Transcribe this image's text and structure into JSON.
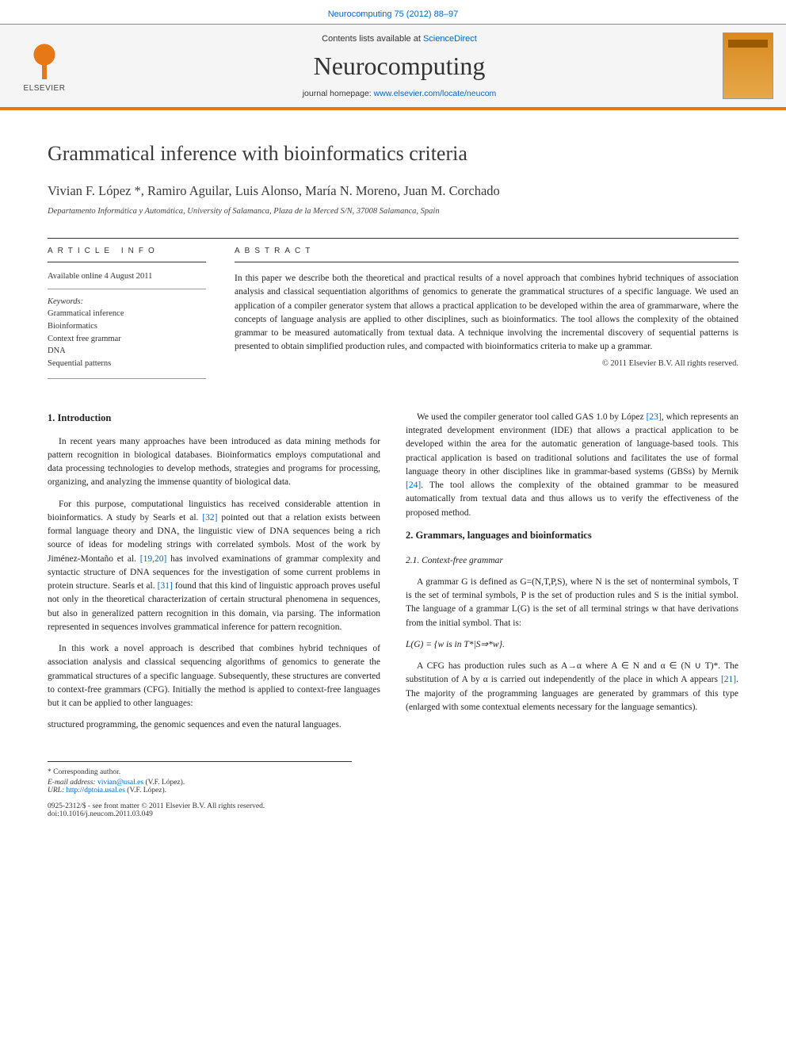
{
  "header": {
    "citation": "Neurocomputing 75 (2012) 88–97",
    "contents_prefix": "Contents lists available at ",
    "contents_link": "ScienceDirect",
    "journal_name": "Neurocomputing",
    "homepage_prefix": "journal homepage: ",
    "homepage_url": "www.elsevier.com/locate/neucom",
    "publisher_name": "ELSEVIER"
  },
  "article": {
    "title": "Grammatical inference with bioinformatics criteria",
    "authors": "Vivian F. López *, Ramiro Aguilar, Luis Alonso, María N. Moreno, Juan M. Corchado",
    "affiliation": "Departamento Informática y Automática, University of Salamanca, Plaza de la Merced S/N, 37008 Salamanca, Spain"
  },
  "info": {
    "section_label": "ARTICLE INFO",
    "available": "Available online 4 August 2011",
    "keywords_label": "Keywords:",
    "keywords": [
      "Grammatical inference",
      "Bioinformatics",
      "Context free grammar",
      "DNA",
      "Sequential patterns"
    ]
  },
  "abstract": {
    "section_label": "ABSTRACT",
    "text": "In this paper we describe both the theoretical and practical results of a novel approach that combines hybrid techniques of association analysis and classical sequentiation algorithms of genomics to generate the grammatical structures of a specific language. We used an application of a compiler generator system that allows a practical application to be developed within the area of grammarware, where the concepts of language analysis are applied to other disciplines, such as bioinformatics. The tool allows the complexity of the obtained grammar to be measured automatically from textual data. A technique involving the incremental discovery of sequential patterns is presented to obtain simplified production rules, and compacted with bioinformatics criteria to make up a grammar.",
    "copyright": "© 2011 Elsevier B.V. All rights reserved."
  },
  "sections": {
    "s1_title": "1. Introduction",
    "s1_p1": "In recent years many approaches have been introduced as data mining methods for pattern recognition in biological databases. Bioinformatics employs computational and data processing technologies to develop methods, strategies and programs for processing, organizing, and analyzing the immense quantity of biological data.",
    "s1_p2a": "For this purpose, computational linguistics has received considerable attention in bioinformatics. A study by Searls et al. ",
    "s1_p2_ref1": "[32]",
    "s1_p2b": " pointed out that a relation exists between formal language theory and DNA, the linguistic view of DNA sequences being a rich source of ideas for modeling strings with correlated symbols. Most of the work by Jiménez-Montaño et al. ",
    "s1_p2_ref2": "[19,20]",
    "s1_p2c": " has involved examinations of grammar complexity and syntactic structure of DNA sequences for the investigation of some current problems in protein structure. Searls et al. ",
    "s1_p2_ref3": "[31]",
    "s1_p2d": " found that this kind of linguistic approach proves useful not only in the theoretical characterization of certain structural phenomena in sequences, but also in generalized pattern recognition in this domain, via parsing. The information represented in sequences involves grammatical inference for pattern recognition.",
    "s1_p3": "In this work a novel approach is described that combines hybrid techniques of association analysis and classical sequencing algorithms of genomics to generate the grammatical structures of a specific language. Subsequently, these structures are converted to context-free grammars (CFG). Initially the method is applied to context-free languages but it can be applied to other languages:",
    "s1_p3_cont": "structured programming, the genomic sequences and even the natural languages.",
    "s1_p4a": "We used the compiler generator tool called GAS 1.0 by López ",
    "s1_p4_ref1": "[23]",
    "s1_p4b": ", which represents an integrated development environment (IDE) that allows a practical application to be developed within the area for the automatic generation of language-based tools. This practical application is based on traditional solutions and facilitates the use of formal language theory in other disciplines like in grammar-based systems (GBSs) by Mernik ",
    "s1_p4_ref2": "[24]",
    "s1_p4c": ". The tool allows the complexity of the obtained grammar to be measured automatically from textual data and thus allows us to verify the effectiveness of the proposed method.",
    "s2_title": "2. Grammars, languages and bioinformatics",
    "s2_1_title": "2.1. Context-free grammar",
    "s2_1_p1": "A grammar G is defined as G=(N,T,P,S), where N is the set of nonterminal symbols, T is the set of terminal symbols, P is the set of production rules and S is the initial symbol. The language of a grammar L(G) is the set of all terminal strings w that have derivations from the initial symbol. That is:",
    "s2_1_formula": "L(G) = {w is in T*|S⇒*w}.",
    "s2_1_p2a": "A CFG has production rules such as A→α where A ∈ N and α ∈ (N ∪ T)*. The substitution of A by α is carried out independently of the place in which A appears ",
    "s2_1_p2_ref": "[21]",
    "s2_1_p2b": ". The majority of the programming languages are generated by grammars of this type (enlarged with some contextual elements necessary for the language semantics)."
  },
  "footer": {
    "corr_label": "* Corresponding author.",
    "email_label": "E-mail address: ",
    "email": "vivian@usal.es",
    "email_suffix": " (V.F. López).",
    "url_label": "URL: ",
    "url": "http://dptoia.usal.es",
    "url_suffix": " (V.F. López).",
    "issn_line": "0925-2312/$ - see front matter © 2011 Elsevier B.V. All rights reserved.",
    "doi_line": "doi:10.1016/j.neucom.2011.03.049"
  },
  "colors": {
    "accent_orange": "#e67817",
    "link_blue": "#0066cc",
    "text": "#1a1a1a",
    "rule_gray": "#333333"
  }
}
